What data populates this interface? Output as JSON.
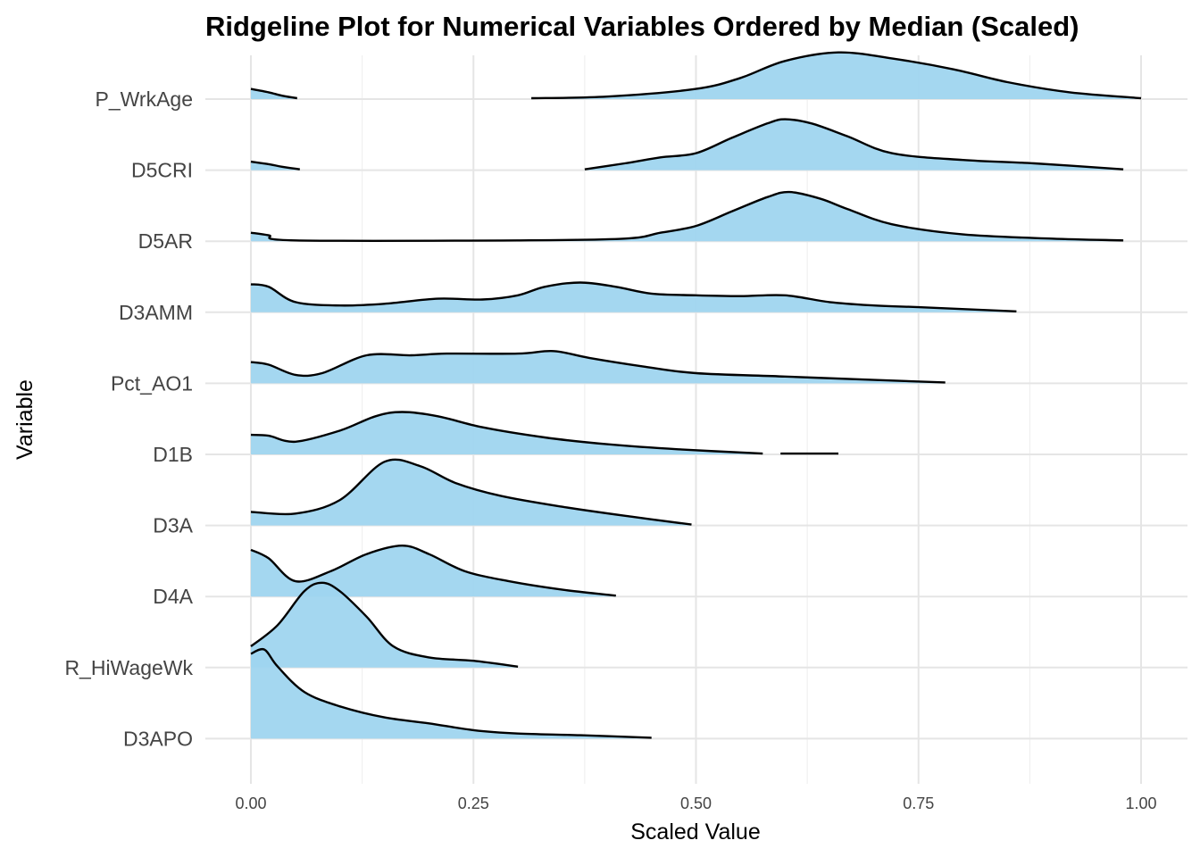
{
  "chart_data": {
    "type": "ridgeline",
    "title": "Ridgeline Plot for Numerical Variables Ordered by Median (Scaled)",
    "xlabel": "Scaled Value",
    "ylabel": "Variable",
    "xlim": [
      0,
      1
    ],
    "x_ticks": [
      0.0,
      0.25,
      0.5,
      0.75,
      1.0
    ],
    "x_tick_labels": [
      "0.00",
      "0.25",
      "0.50",
      "0.75",
      "1.00"
    ],
    "grid": true,
    "fill_color": "#9fd5ef",
    "line_color": "#000000",
    "categories": [
      "P_WrkAge",
      "D5CRI",
      "D5AR",
      "D3AMM",
      "Pct_AO1",
      "D1B",
      "D3A",
      "D4A",
      "R_HiWageWk",
      "D3APO"
    ],
    "series": [
      {
        "name": "P_WrkAge",
        "segments": [
          [
            [
              0.0,
              0.12
            ],
            [
              0.02,
              0.08
            ],
            [
              0.035,
              0.04
            ],
            [
              0.052,
              0.01
            ]
          ],
          [
            [
              0.315,
              0.01
            ],
            [
              0.4,
              0.03
            ],
            [
              0.5,
              0.12
            ],
            [
              0.55,
              0.25
            ],
            [
              0.6,
              0.45
            ],
            [
              0.66,
              0.55
            ],
            [
              0.72,
              0.48
            ],
            [
              0.79,
              0.35
            ],
            [
              0.85,
              0.2
            ],
            [
              0.92,
              0.08
            ],
            [
              1.0,
              0.01
            ]
          ]
        ]
      },
      {
        "name": "D5CRI",
        "segments": [
          [
            [
              0.0,
              0.1
            ],
            [
              0.02,
              0.07
            ],
            [
              0.035,
              0.04
            ],
            [
              0.055,
              0.01
            ]
          ],
          [
            [
              0.375,
              0.01
            ],
            [
              0.42,
              0.08
            ],
            [
              0.46,
              0.15
            ],
            [
              0.5,
              0.2
            ],
            [
              0.54,
              0.38
            ],
            [
              0.58,
              0.55
            ],
            [
              0.6,
              0.6
            ],
            [
              0.63,
              0.55
            ],
            [
              0.67,
              0.4
            ],
            [
              0.72,
              0.2
            ],
            [
              0.8,
              0.12
            ],
            [
              0.88,
              0.08
            ],
            [
              0.98,
              0.01
            ]
          ]
        ]
      },
      {
        "name": "D5AR",
        "segments": [
          [
            [
              0.0,
              0.1
            ],
            [
              0.02,
              0.07
            ],
            [
              0.05,
              0.01
            ],
            [
              0.3,
              0.01
            ],
            [
              0.42,
              0.03
            ],
            [
              0.46,
              0.1
            ],
            [
              0.5,
              0.18
            ],
            [
              0.54,
              0.35
            ],
            [
              0.58,
              0.52
            ],
            [
              0.605,
              0.58
            ],
            [
              0.64,
              0.5
            ],
            [
              0.67,
              0.38
            ],
            [
              0.72,
              0.2
            ],
            [
              0.8,
              0.08
            ],
            [
              0.9,
              0.03
            ],
            [
              0.98,
              0.01
            ]
          ]
        ]
      },
      {
        "name": "D3AMM",
        "segments": [
          [
            [
              0.0,
              0.33
            ],
            [
              0.02,
              0.3
            ],
            [
              0.05,
              0.12
            ],
            [
              0.1,
              0.08
            ],
            [
              0.15,
              0.1
            ],
            [
              0.21,
              0.16
            ],
            [
              0.26,
              0.15
            ],
            [
              0.3,
              0.2
            ],
            [
              0.33,
              0.3
            ],
            [
              0.37,
              0.35
            ],
            [
              0.41,
              0.3
            ],
            [
              0.45,
              0.22
            ],
            [
              0.5,
              0.2
            ],
            [
              0.55,
              0.19
            ],
            [
              0.6,
              0.2
            ],
            [
              0.65,
              0.12
            ],
            [
              0.7,
              0.08
            ],
            [
              0.75,
              0.06
            ],
            [
              0.86,
              0.01
            ]
          ]
        ]
      },
      {
        "name": "Pct_AO1",
        "segments": [
          [
            [
              0.0,
              0.25
            ],
            [
              0.02,
              0.22
            ],
            [
              0.05,
              0.1
            ],
            [
              0.08,
              0.12
            ],
            [
              0.13,
              0.33
            ],
            [
              0.18,
              0.33
            ],
            [
              0.22,
              0.35
            ],
            [
              0.3,
              0.35
            ],
            [
              0.34,
              0.38
            ],
            [
              0.38,
              0.3
            ],
            [
              0.44,
              0.2
            ],
            [
              0.5,
              0.12
            ],
            [
              0.6,
              0.08
            ],
            [
              0.7,
              0.04
            ],
            [
              0.78,
              0.01
            ]
          ]
        ]
      },
      {
        "name": "D1B",
        "segments": [
          [
            [
              0.0,
              0.23
            ],
            [
              0.02,
              0.22
            ],
            [
              0.05,
              0.15
            ],
            [
              0.1,
              0.28
            ],
            [
              0.14,
              0.45
            ],
            [
              0.17,
              0.5
            ],
            [
              0.21,
              0.45
            ],
            [
              0.26,
              0.32
            ],
            [
              0.33,
              0.2
            ],
            [
              0.4,
              0.12
            ],
            [
              0.48,
              0.06
            ],
            [
              0.575,
              0.01
            ]
          ],
          [
            [
              0.595,
              0.01
            ],
            [
              0.66,
              0.01
            ]
          ]
        ]
      },
      {
        "name": "D3A",
        "segments": [
          [
            [
              0.0,
              0.16
            ],
            [
              0.05,
              0.14
            ],
            [
              0.1,
              0.3
            ],
            [
              0.15,
              0.75
            ],
            [
              0.19,
              0.7
            ],
            [
              0.23,
              0.5
            ],
            [
              0.28,
              0.35
            ],
            [
              0.35,
              0.22
            ],
            [
              0.43,
              0.1
            ],
            [
              0.495,
              0.01
            ]
          ]
        ]
      },
      {
        "name": "D4A",
        "segments": [
          [
            [
              0.0,
              0.55
            ],
            [
              0.02,
              0.45
            ],
            [
              0.05,
              0.18
            ],
            [
              0.09,
              0.3
            ],
            [
              0.13,
              0.5
            ],
            [
              0.17,
              0.6
            ],
            [
              0.2,
              0.5
            ],
            [
              0.24,
              0.3
            ],
            [
              0.29,
              0.18
            ],
            [
              0.35,
              0.08
            ],
            [
              0.41,
              0.01
            ]
          ]
        ]
      },
      {
        "name": "R_HiWageWk",
        "segments": [
          [
            [
              0.0,
              0.25
            ],
            [
              0.03,
              0.5
            ],
            [
              0.06,
              0.9
            ],
            [
              0.08,
              1.0
            ],
            [
              0.1,
              0.9
            ],
            [
              0.13,
              0.6
            ],
            [
              0.16,
              0.25
            ],
            [
              0.2,
              0.12
            ],
            [
              0.25,
              0.08
            ],
            [
              0.3,
              0.01
            ]
          ]
        ]
      },
      {
        "name": "D3APO",
        "segments": [
          [
            [
              0.0,
              1.0
            ],
            [
              0.015,
              1.05
            ],
            [
              0.03,
              0.85
            ],
            [
              0.06,
              0.55
            ],
            [
              0.1,
              0.38
            ],
            [
              0.15,
              0.25
            ],
            [
              0.2,
              0.18
            ],
            [
              0.25,
              0.1
            ],
            [
              0.3,
              0.06
            ],
            [
              0.37,
              0.04
            ],
            [
              0.45,
              0.01
            ]
          ]
        ]
      }
    ]
  }
}
